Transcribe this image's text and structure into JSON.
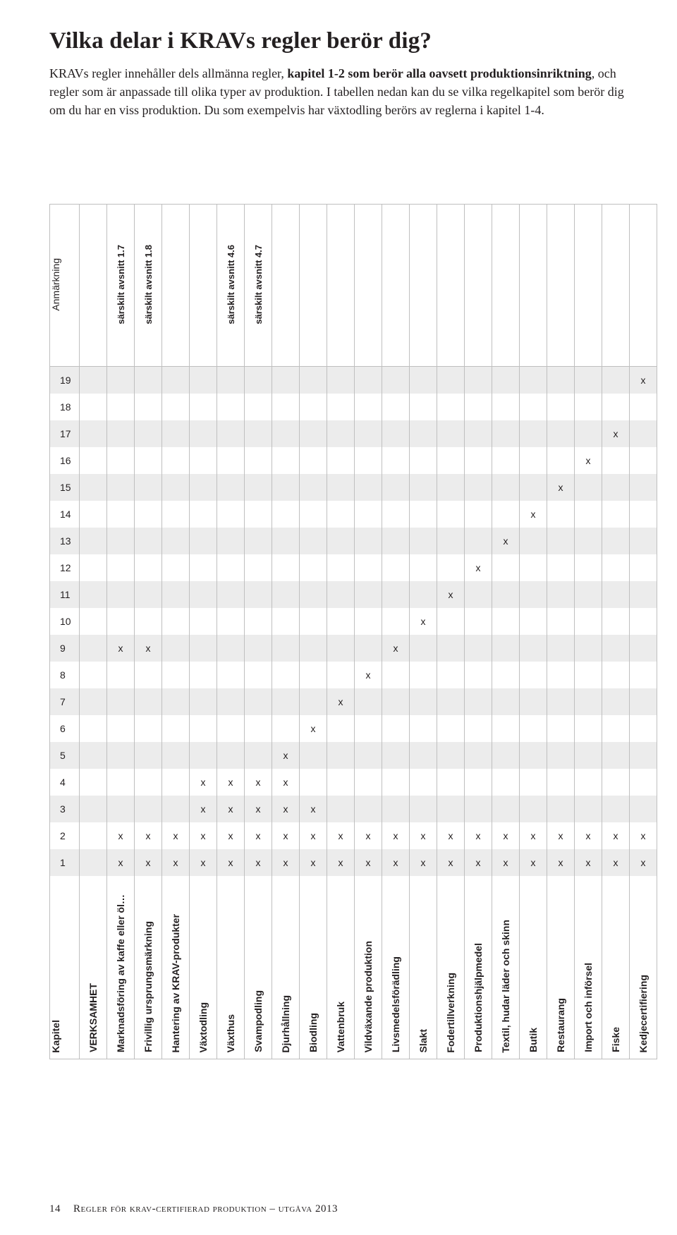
{
  "heading": "Vilka delar i KRAVs regler berör dig?",
  "intro_parts": {
    "p1": "KRAVs regler innehåller dels allmänna regler, ",
    "bold": "kapitel 1-2 som berör alla oavsett produktionsinriktning",
    "p2": ", och regler som är anpassade till olika typer av produktion. I tabellen nedan kan du se vilka regelkapitel som berör dig om du har en viss produktion. Du som exempelvis har växtodling berörs av reglerna i kapitel 1-4."
  },
  "columns": [
    {
      "key": "kapitel",
      "label": "Kapitel",
      "note": ""
    },
    {
      "key": "verksamhet",
      "label": "VERKSAMHET",
      "note": ""
    },
    {
      "key": "marknadsforing",
      "label": "Marknadsföring av kaffe eller öl…",
      "note": "särskilt avsnitt 1.7"
    },
    {
      "key": "frivillig",
      "label": "Frivillig ursprungsmärkning",
      "note": "särskilt avsnitt 1.8"
    },
    {
      "key": "hantering",
      "label": "Hantering av KRAV-produkter",
      "note": ""
    },
    {
      "key": "vaxtodling",
      "label": "Växtodling",
      "note": ""
    },
    {
      "key": "vaxthus",
      "label": "Växthus",
      "note": "särskilt avsnitt 4.6"
    },
    {
      "key": "svampodling",
      "label": "Svampodling",
      "note": "särskilt avsnitt 4.7"
    },
    {
      "key": "djurhallning",
      "label": "Djurhållning",
      "note": ""
    },
    {
      "key": "biodling",
      "label": "Biodling",
      "note": ""
    },
    {
      "key": "vattenbruk",
      "label": "Vattenbruk",
      "note": ""
    },
    {
      "key": "vildvaxande",
      "label": "Vildväxande produktion",
      "note": ""
    },
    {
      "key": "livsmedel",
      "label": "Livsmedelsförädling",
      "note": ""
    },
    {
      "key": "slakt",
      "label": "Slakt",
      "note": ""
    },
    {
      "key": "foder",
      "label": "Fodertillverkning",
      "note": ""
    },
    {
      "key": "prodhjalp",
      "label": "Produktionshjälpmedel",
      "note": ""
    },
    {
      "key": "textil",
      "label": "Textil, hudar läder och skinn",
      "note": ""
    },
    {
      "key": "butik",
      "label": "Butik",
      "note": ""
    },
    {
      "key": "restaurang",
      "label": "Restaurang",
      "note": ""
    },
    {
      "key": "import",
      "label": "Import och införsel",
      "note": ""
    },
    {
      "key": "fiske",
      "label": "Fiske",
      "note": ""
    },
    {
      "key": "kedjecert",
      "label": "Kedjecertifiering",
      "note": ""
    }
  ],
  "anno_head": "Anmärkning",
  "chapters": [
    "19",
    "18",
    "17",
    "16",
    "15",
    "14",
    "13",
    "12",
    "11",
    "10",
    "9",
    "8",
    "7",
    "6",
    "5",
    "4",
    "3",
    "2",
    "1"
  ],
  "shade_rows": [
    "19",
    "17",
    "15",
    "13",
    "11",
    "9",
    "7",
    "5",
    "3",
    "1"
  ],
  "marks": {
    "19": [
      "kedjecert"
    ],
    "18": [],
    "17": [
      "fiske"
    ],
    "16": [
      "import"
    ],
    "15": [
      "restaurang"
    ],
    "14": [
      "butik"
    ],
    "13": [
      "textil"
    ],
    "12": [
      "prodhjalp"
    ],
    "11": [
      "foder"
    ],
    "10": [
      "slakt"
    ],
    "9": [
      "marknadsforing",
      "frivillig",
      "livsmedel"
    ],
    "8": [
      "vildvaxande"
    ],
    "7": [
      "vattenbruk"
    ],
    "6": [
      "biodling"
    ],
    "5": [
      "djurhallning"
    ],
    "4": [
      "vaxtodling",
      "vaxthus",
      "svampodling",
      "djurhallning"
    ],
    "3": [
      "vaxtodling",
      "vaxthus",
      "svampodling",
      "djurhallning",
      "biodling"
    ],
    "2": [
      "marknadsforing",
      "frivillig",
      "hantering",
      "vaxtodling",
      "vaxthus",
      "svampodling",
      "djurhallning",
      "biodling",
      "vattenbruk",
      "vildvaxande",
      "livsmedel",
      "slakt",
      "foder",
      "prodhjalp",
      "textil",
      "butik",
      "restaurang",
      "import",
      "fiske",
      "kedjecert"
    ],
    "1": [
      "marknadsforing",
      "frivillig",
      "hantering",
      "vaxtodling",
      "vaxthus",
      "svampodling",
      "djurhallning",
      "biodling",
      "vattenbruk",
      "vildvaxande",
      "livsmedel",
      "slakt",
      "foder",
      "prodhjalp",
      "textil",
      "butik",
      "restaurang",
      "import",
      "fiske",
      "kedjecert"
    ]
  },
  "mark_glyph": "x",
  "footer": {
    "page": "14",
    "text": "Regler för krav-certifierad produktion – utgåva 2013"
  },
  "colors": {
    "shade": "#ececec",
    "border": "#bfbfbf",
    "text": "#231f20"
  }
}
